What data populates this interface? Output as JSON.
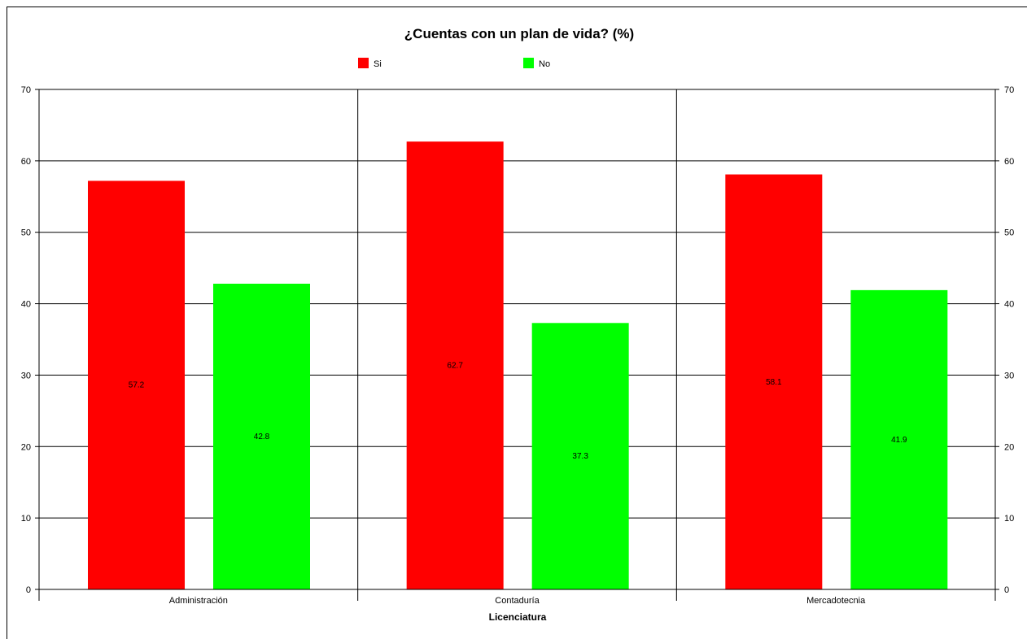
{
  "chart_data": {
    "type": "bar",
    "title": "¿Cuentas con un plan de vida? (%)",
    "xlabel": "Licenciatura",
    "ylabel": "",
    "categories": [
      "Administración",
      "Contaduría",
      "Mercadotecnia"
    ],
    "series": [
      {
        "name": "Si",
        "values": [
          57.2,
          62.7,
          58.1
        ],
        "color": "#ff0000"
      },
      {
        "name": "No",
        "values": [
          42.8,
          37.3,
          41.9
        ],
        "color": "#00ff00"
      }
    ],
    "value_labels": [
      [
        "57.2",
        "62.7",
        "58.1"
      ],
      [
        "42.8",
        "37.3",
        "41.9"
      ]
    ],
    "ylim": [
      0,
      70
    ],
    "yticks": [
      "0",
      "10",
      "20",
      "30",
      "40",
      "50",
      "60",
      "70"
    ],
    "grid": true,
    "legend_position": "top"
  }
}
